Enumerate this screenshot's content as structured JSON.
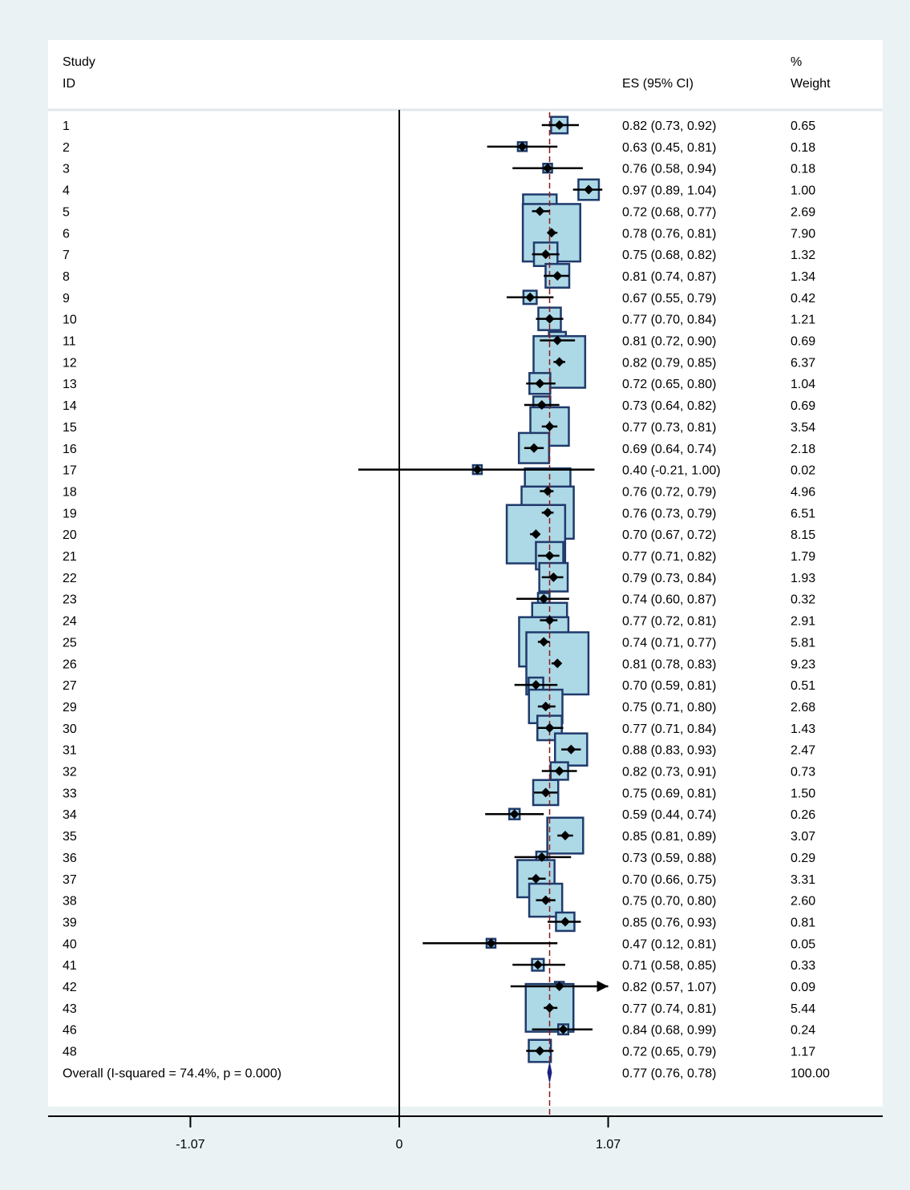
{
  "chart_data": {
    "type": "forest",
    "header": {
      "study_line1": "Study",
      "study_line2": "ID",
      "es_label": "ES (95% CI)",
      "weight_line1": "%",
      "weight_line2": "Weight"
    },
    "studies": [
      {
        "id": "1",
        "es": 0.82,
        "lo": 0.73,
        "hi": 0.92,
        "ci_text": "0.82 (0.73, 0.92)",
        "weight": "0.65"
      },
      {
        "id": "2",
        "es": 0.63,
        "lo": 0.45,
        "hi": 0.81,
        "ci_text": "0.63 (0.45, 0.81)",
        "weight": "0.18"
      },
      {
        "id": "3",
        "es": 0.76,
        "lo": 0.58,
        "hi": 0.94,
        "ci_text": "0.76 (0.58, 0.94)",
        "weight": "0.18"
      },
      {
        "id": "4",
        "es": 0.97,
        "lo": 0.89,
        "hi": 1.04,
        "ci_text": "0.97 (0.89, 1.04)",
        "weight": "1.00"
      },
      {
        "id": "5",
        "es": 0.72,
        "lo": 0.68,
        "hi": 0.77,
        "ci_text": "0.72 (0.68, 0.77)",
        "weight": "2.69"
      },
      {
        "id": "6",
        "es": 0.78,
        "lo": 0.76,
        "hi": 0.81,
        "ci_text": "0.78 (0.76, 0.81)",
        "weight": "7.90"
      },
      {
        "id": "7",
        "es": 0.75,
        "lo": 0.68,
        "hi": 0.82,
        "ci_text": "0.75 (0.68, 0.82)",
        "weight": "1.32"
      },
      {
        "id": "8",
        "es": 0.81,
        "lo": 0.74,
        "hi": 0.87,
        "ci_text": "0.81 (0.74, 0.87)",
        "weight": "1.34"
      },
      {
        "id": "9",
        "es": 0.67,
        "lo": 0.55,
        "hi": 0.79,
        "ci_text": "0.67 (0.55, 0.79)",
        "weight": "0.42"
      },
      {
        "id": "10",
        "es": 0.77,
        "lo": 0.7,
        "hi": 0.84,
        "ci_text": "0.77 (0.70, 0.84)",
        "weight": "1.21"
      },
      {
        "id": "11",
        "es": 0.81,
        "lo": 0.72,
        "hi": 0.9,
        "ci_text": "0.81 (0.72, 0.90)",
        "weight": "0.69"
      },
      {
        "id": "12",
        "es": 0.82,
        "lo": 0.79,
        "hi": 0.85,
        "ci_text": "0.82 (0.79, 0.85)",
        "weight": "6.37"
      },
      {
        "id": "13",
        "es": 0.72,
        "lo": 0.65,
        "hi": 0.8,
        "ci_text": "0.72 (0.65, 0.80)",
        "weight": "1.04"
      },
      {
        "id": "14",
        "es": 0.73,
        "lo": 0.64,
        "hi": 0.82,
        "ci_text": "0.73 (0.64, 0.82)",
        "weight": "0.69"
      },
      {
        "id": "15",
        "es": 0.77,
        "lo": 0.73,
        "hi": 0.81,
        "ci_text": "0.77 (0.73, 0.81)",
        "weight": "3.54"
      },
      {
        "id": "16",
        "es": 0.69,
        "lo": 0.64,
        "hi": 0.74,
        "ci_text": "0.69 (0.64, 0.74)",
        "weight": "2.18"
      },
      {
        "id": "17",
        "es": 0.4,
        "lo": -0.21,
        "hi": 1.0,
        "ci_text": "0.40 (-0.21, 1.00)",
        "weight": "0.02"
      },
      {
        "id": "18",
        "es": 0.76,
        "lo": 0.72,
        "hi": 0.79,
        "ci_text": "0.76 (0.72, 0.79)",
        "weight": "4.96"
      },
      {
        "id": "19",
        "es": 0.76,
        "lo": 0.73,
        "hi": 0.79,
        "ci_text": "0.76 (0.73, 0.79)",
        "weight": "6.51"
      },
      {
        "id": "20",
        "es": 0.7,
        "lo": 0.67,
        "hi": 0.72,
        "ci_text": "0.70 (0.67, 0.72)",
        "weight": "8.15"
      },
      {
        "id": "21",
        "es": 0.77,
        "lo": 0.71,
        "hi": 0.82,
        "ci_text": "0.77 (0.71, 0.82)",
        "weight": "1.79"
      },
      {
        "id": "22",
        "es": 0.79,
        "lo": 0.73,
        "hi": 0.84,
        "ci_text": "0.79 (0.73, 0.84)",
        "weight": "1.93"
      },
      {
        "id": "23",
        "es": 0.74,
        "lo": 0.6,
        "hi": 0.87,
        "ci_text": "0.74 (0.60, 0.87)",
        "weight": "0.32"
      },
      {
        "id": "24",
        "es": 0.77,
        "lo": 0.72,
        "hi": 0.81,
        "ci_text": "0.77 (0.72, 0.81)",
        "weight": "2.91"
      },
      {
        "id": "25",
        "es": 0.74,
        "lo": 0.71,
        "hi": 0.77,
        "ci_text": "0.74 (0.71, 0.77)",
        "weight": "5.81"
      },
      {
        "id": "26",
        "es": 0.81,
        "lo": 0.78,
        "hi": 0.83,
        "ci_text": "0.81 (0.78, 0.83)",
        "weight": "9.23"
      },
      {
        "id": "27",
        "es": 0.7,
        "lo": 0.59,
        "hi": 0.81,
        "ci_text": "0.70 (0.59, 0.81)",
        "weight": "0.51"
      },
      {
        "id": "29",
        "es": 0.75,
        "lo": 0.71,
        "hi": 0.8,
        "ci_text": "0.75 (0.71, 0.80)",
        "weight": "2.68"
      },
      {
        "id": "30",
        "es": 0.77,
        "lo": 0.71,
        "hi": 0.84,
        "ci_text": "0.77 (0.71, 0.84)",
        "weight": "1.43"
      },
      {
        "id": "31",
        "es": 0.88,
        "lo": 0.83,
        "hi": 0.93,
        "ci_text": "0.88 (0.83, 0.93)",
        "weight": "2.47"
      },
      {
        "id": "32",
        "es": 0.82,
        "lo": 0.73,
        "hi": 0.91,
        "ci_text": "0.82 (0.73, 0.91)",
        "weight": "0.73"
      },
      {
        "id": "33",
        "es": 0.75,
        "lo": 0.69,
        "hi": 0.81,
        "ci_text": "0.75 (0.69, 0.81)",
        "weight": "1.50"
      },
      {
        "id": "34",
        "es": 0.59,
        "lo": 0.44,
        "hi": 0.74,
        "ci_text": "0.59 (0.44, 0.74)",
        "weight": "0.26"
      },
      {
        "id": "35",
        "es": 0.85,
        "lo": 0.81,
        "hi": 0.89,
        "ci_text": "0.85 (0.81, 0.89)",
        "weight": "3.07"
      },
      {
        "id": "36",
        "es": 0.73,
        "lo": 0.59,
        "hi": 0.88,
        "ci_text": "0.73 (0.59, 0.88)",
        "weight": "0.29"
      },
      {
        "id": "37",
        "es": 0.7,
        "lo": 0.66,
        "hi": 0.75,
        "ci_text": "0.70 (0.66, 0.75)",
        "weight": "3.31"
      },
      {
        "id": "38",
        "es": 0.75,
        "lo": 0.7,
        "hi": 0.8,
        "ci_text": "0.75 (0.70, 0.80)",
        "weight": "2.60"
      },
      {
        "id": "39",
        "es": 0.85,
        "lo": 0.76,
        "hi": 0.93,
        "ci_text": "0.85 (0.76, 0.93)",
        "weight": "0.81"
      },
      {
        "id": "40",
        "es": 0.47,
        "lo": 0.12,
        "hi": 0.81,
        "ci_text": "0.47 (0.12, 0.81)",
        "weight": "0.05"
      },
      {
        "id": "41",
        "es": 0.71,
        "lo": 0.58,
        "hi": 0.85,
        "ci_text": "0.71 (0.58, 0.85)",
        "weight": "0.33"
      },
      {
        "id": "42",
        "es": 0.82,
        "lo": 0.57,
        "hi": 1.07,
        "ci_text": "0.82 (0.57, 1.07)",
        "weight": "0.09",
        "arrow_right": true
      },
      {
        "id": "43",
        "es": 0.77,
        "lo": 0.74,
        "hi": 0.81,
        "ci_text": "0.77 (0.74, 0.81)",
        "weight": "5.44"
      },
      {
        "id": "46",
        "es": 0.84,
        "lo": 0.68,
        "hi": 0.99,
        "ci_text": "0.84 (0.68, 0.99)",
        "weight": "0.24"
      },
      {
        "id": "48",
        "es": 0.72,
        "lo": 0.65,
        "hi": 0.79,
        "ci_text": "0.72 (0.65, 0.79)",
        "weight": "1.17"
      }
    ],
    "overall": {
      "label": "Overall  (I-squared = 74.4%, p = 0.000)",
      "es": 0.77,
      "lo": 0.76,
      "hi": 0.78,
      "ci_text": "0.77 (0.76, 0.78)",
      "weight": "100.00"
    },
    "x_ticks": [
      {
        "value": -1.07,
        "label": "-1.07"
      },
      {
        "value": 0,
        "label": "0"
      },
      {
        "value": 1.07,
        "label": "1.07"
      }
    ],
    "x_range": [
      -1.81,
      2.48
    ],
    "null_line": 0,
    "colors": {
      "box_fill": "#add8e6",
      "box_stroke": "#1f3a6b",
      "marker": "#000000",
      "overall_diamond": "#1a237e",
      "reference_line": "#8b1a1a",
      "background": "#eaf2f3"
    }
  }
}
